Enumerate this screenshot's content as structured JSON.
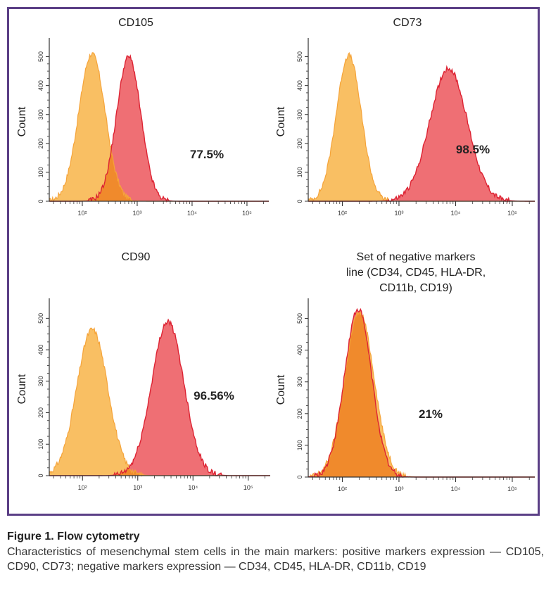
{
  "caption": {
    "title": "Figure 1. Flow cytometry",
    "text": "Characteristics of mesenchymal stem cells in the main markers: positive markers expression — CD105, CD90, CD73; negative markers expression — CD34, CD45, HLA-DR, CD11b, CD19"
  },
  "colors": {
    "frame": "#5b3f86",
    "isotype_fill": "#f9bf63",
    "isotype_edge": "#f5a43a",
    "marker_fill": "#ef6f74",
    "marker_edge": "#dd2333",
    "overlap_fill": "#f08a2c"
  },
  "chart_data": [
    {
      "type": "area",
      "title": "CD105",
      "xlabel": "",
      "ylabel": "Count",
      "x_scale": "log",
      "xlim": [
        25,
        250000
      ],
      "ylim": [
        0,
        550
      ],
      "x_ticks": [
        "10²",
        "10³",
        "10⁴",
        "10⁵"
      ],
      "y_ticks": [
        0,
        100,
        200,
        300,
        400,
        500
      ],
      "annotation": "77.5%",
      "series": [
        {
          "role": "isotype",
          "peak_x": 150,
          "peak_y": 510,
          "log_sd": 0.24
        },
        {
          "role": "marker",
          "peak_x": 700,
          "peak_y": 500,
          "log_sd": 0.22
        }
      ]
    },
    {
      "type": "area",
      "title": "CD73",
      "xlabel": "",
      "ylabel": "Count",
      "x_scale": "log",
      "xlim": [
        25,
        250000
      ],
      "ylim": [
        0,
        550
      ],
      "x_ticks": [
        "10²",
        "10³",
        "10⁴",
        "10⁵"
      ],
      "y_ticks": [
        0,
        100,
        200,
        300,
        400,
        500
      ],
      "annotation": "98.5%",
      "series": [
        {
          "role": "isotype",
          "peak_x": 130,
          "peak_y": 505,
          "log_sd": 0.22
        },
        {
          "role": "marker",
          "peak_x": 7500,
          "peak_y": 460,
          "log_sd": 0.33
        }
      ]
    },
    {
      "type": "area",
      "title": "CD90",
      "xlabel": "",
      "ylabel": "Count",
      "x_scale": "log",
      "xlim": [
        25,
        250000
      ],
      "ylim": [
        0,
        550
      ],
      "x_ticks": [
        "10²",
        "10³",
        "10⁴",
        "10⁵"
      ],
      "y_ticks": [
        0,
        100,
        200,
        300,
        400,
        500
      ],
      "annotation": "96.56%",
      "series": [
        {
          "role": "isotype",
          "peak_x": 150,
          "peak_y": 465,
          "log_sd": 0.28
        },
        {
          "role": "marker",
          "peak_x": 3500,
          "peak_y": 490,
          "log_sd": 0.29
        }
      ]
    },
    {
      "type": "area",
      "title": "Set of negative markers line (CD34, CD45, HLA-DR, CD11b, CD19)",
      "title_lines": [
        "Set of negative markers",
        "line (CD34, CD45, HLA-DR,",
        "CD11b, CD19)"
      ],
      "xlabel": "",
      "ylabel": "Count",
      "x_scale": "log",
      "xlim": [
        25,
        250000
      ],
      "ylim": [
        0,
        550
      ],
      "x_ticks": [
        "10²",
        "10³",
        "10⁴",
        "10⁵"
      ],
      "y_ticks": [
        0,
        100,
        200,
        300,
        400,
        500
      ],
      "annotation": "21%",
      "series": [
        {
          "role": "isotype",
          "peak_x": 200,
          "peak_y": 520,
          "log_sd": 0.26
        },
        {
          "role": "marker",
          "peak_x": 190,
          "peak_y": 530,
          "log_sd": 0.24
        }
      ]
    }
  ]
}
